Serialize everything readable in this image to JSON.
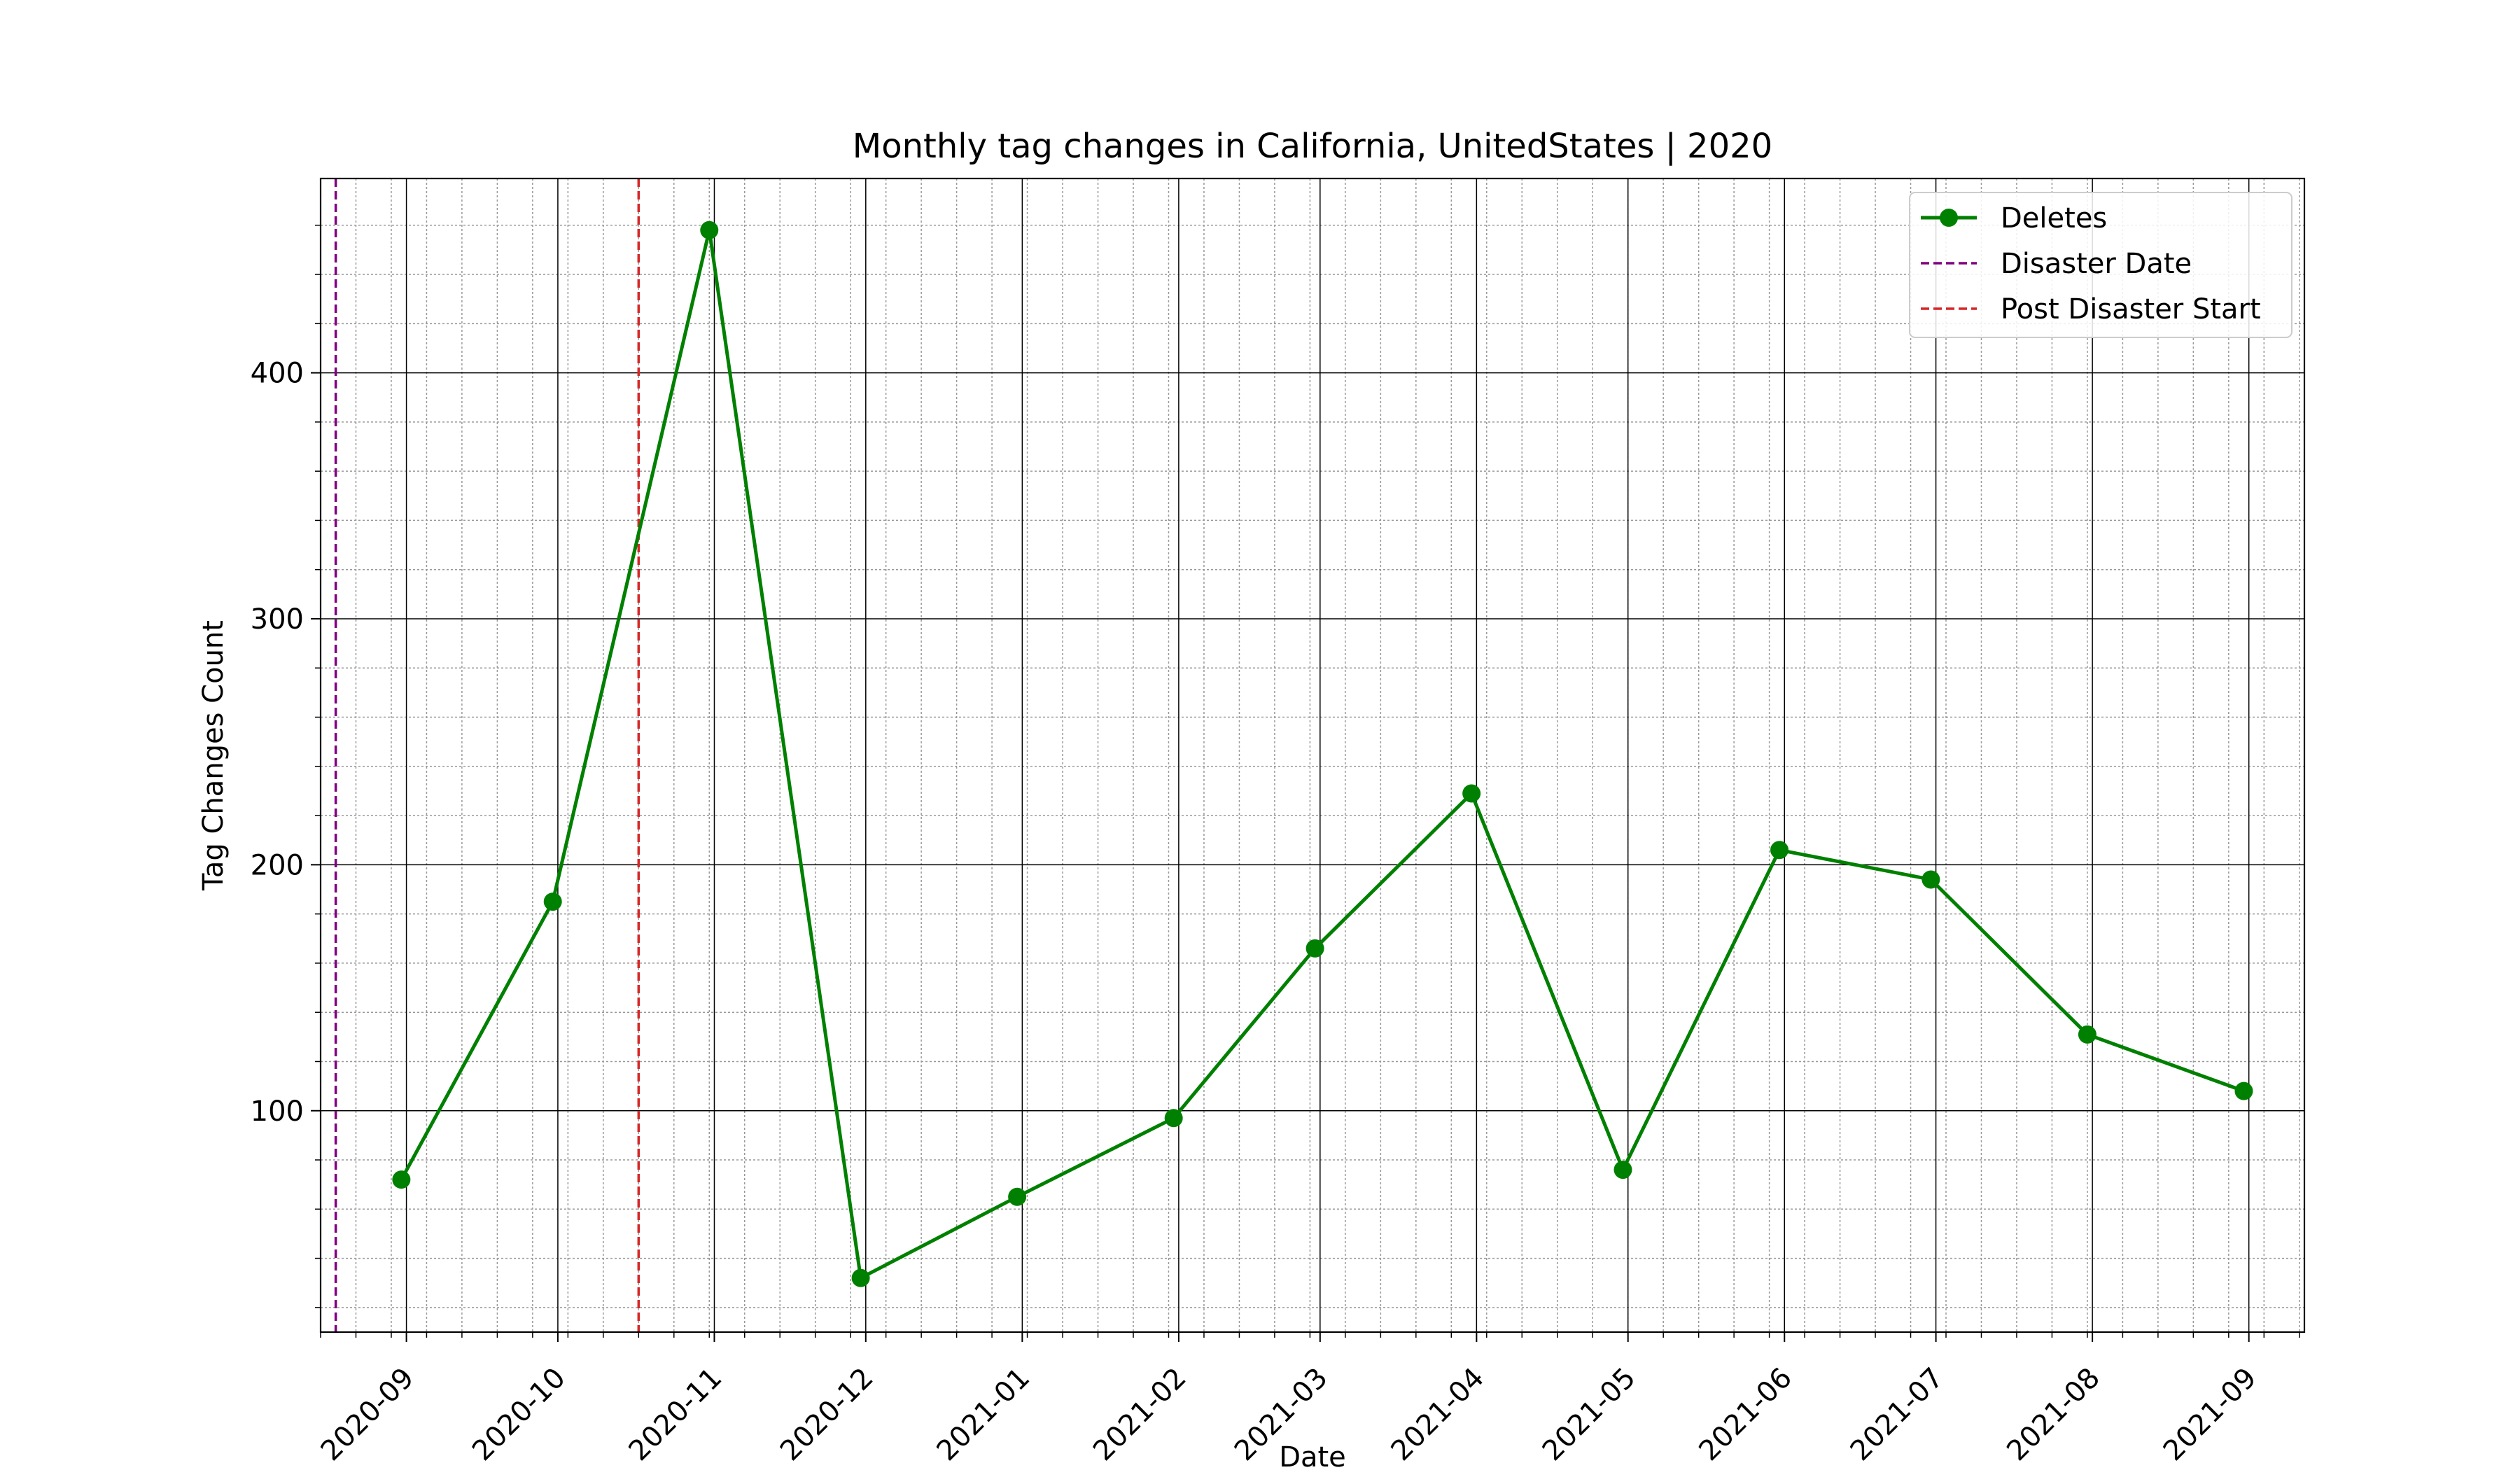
{
  "chart_data": {
    "type": "line",
    "title": "Monthly tag changes in California, UnitedStates | 2020",
    "xlabel": "Date",
    "ylabel": "Tag Changes Count",
    "x_range": [
      "2020-08-15",
      "2021-09-12"
    ],
    "ylim": [
      10,
      479
    ],
    "y_ticks": [
      100,
      200,
      300,
      400
    ],
    "x_ticks": [
      "2020-09",
      "2020-10",
      "2020-11",
      "2020-12",
      "2021-01",
      "2021-02",
      "2021-03",
      "2021-04",
      "2021-05",
      "2021-06",
      "2021-07",
      "2021-08",
      "2021-09"
    ],
    "grid": "major and minor",
    "legend_position": "top-right",
    "series": [
      {
        "name": "Deletes",
        "color": "#008000",
        "marker": "circle",
        "x": [
          "2020-08-31",
          "2020-09-30",
          "2020-10-31",
          "2020-11-30",
          "2020-12-31",
          "2021-01-31",
          "2021-02-28",
          "2021-03-31",
          "2021-04-30",
          "2021-05-31",
          "2021-06-30",
          "2021-07-31",
          "2021-08-31"
        ],
        "values": [
          72,
          185,
          458,
          32,
          65,
          97,
          166,
          229,
          76,
          206,
          194,
          131,
          108
        ]
      }
    ],
    "reference_lines": [
      {
        "name": "Disaster Date",
        "date": "2020-08-18",
        "color": "#800080",
        "style": "dashed"
      },
      {
        "name": "Post Disaster Start",
        "date": "2020-10-17",
        "color": "#d62728",
        "style": "dashed"
      }
    ]
  }
}
